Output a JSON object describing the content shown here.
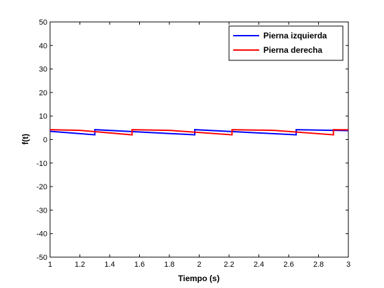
{
  "chart_data": {
    "type": "line",
    "xlabel": "Tiempo (s)",
    "ylabel": "f(t)",
    "xlim": [
      1,
      3
    ],
    "ylim": [
      -50,
      50
    ],
    "x_ticks": [
      1,
      1.2,
      1.4,
      1.6,
      1.8,
      2,
      2.2,
      2.4,
      2.6,
      2.8,
      3
    ],
    "x_tick_labels": [
      "1",
      "1.2",
      "1.4",
      "1.6",
      "1.8",
      "2",
      "2.2",
      "2.4",
      "2.6",
      "2.8",
      "3"
    ],
    "y_ticks": [
      -50,
      -40,
      -30,
      -20,
      -10,
      0,
      10,
      20,
      30,
      40,
      50
    ],
    "y_tick_labels": [
      "-50",
      "-40",
      "-30",
      "-20",
      "-10",
      "0",
      "10",
      "20",
      "30",
      "40",
      "50"
    ],
    "grid": false,
    "legend_position": "top-right",
    "series": [
      {
        "name": "Pierna izquierda",
        "color": "#0000ff",
        "x": [
          1.0,
          1.3,
          1.3,
          1.97,
          1.97,
          2.65,
          2.65,
          3.0
        ],
        "y": [
          3.5,
          2.0,
          4.2,
          2.0,
          4.2,
          2.0,
          4.2,
          3.8
        ]
      },
      {
        "name": "Pierna derecha",
        "color": "#ff0000",
        "x": [
          1.0,
          1.2,
          1.55,
          1.55,
          1.8,
          2.22,
          2.22,
          2.5,
          2.9,
          2.9,
          3.0
        ],
        "y": [
          4.2,
          3.9,
          2.0,
          4.2,
          3.9,
          2.0,
          4.2,
          3.9,
          2.0,
          4.2,
          4.1
        ]
      }
    ]
  }
}
